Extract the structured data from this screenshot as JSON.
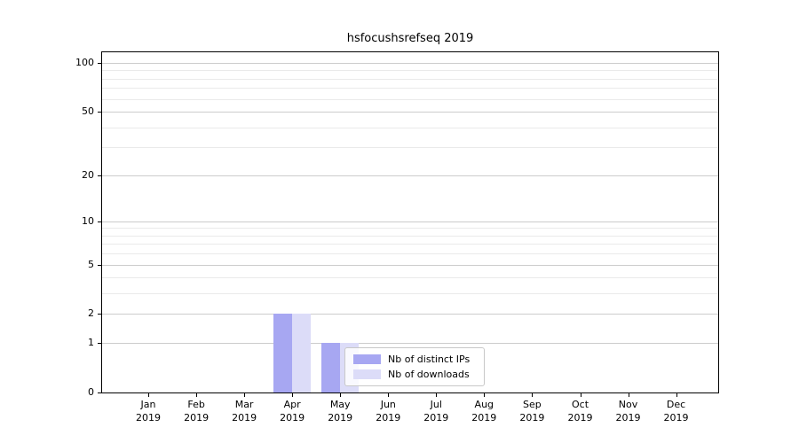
{
  "title": "hsfocushsrefseq 2019",
  "chart_data": {
    "type": "bar",
    "title": "hsfocushsrefseq 2019",
    "categories": [
      "Jan",
      "Feb",
      "Mar",
      "Apr",
      "May",
      "Jun",
      "Jul",
      "Aug",
      "Sep",
      "Oct",
      "Nov",
      "Dec"
    ],
    "category_year": "2019",
    "series": [
      {
        "name": "Nb of distinct IPs",
        "color": "#a7a7f2",
        "values": [
          0,
          0,
          0,
          2,
          1,
          0,
          0,
          0,
          0,
          0,
          0,
          0
        ]
      },
      {
        "name": "Nb of downloads",
        "color": "#dcdcf8",
        "values": [
          0,
          0,
          0,
          2,
          1,
          0,
          0,
          0,
          0,
          0,
          0,
          0
        ]
      }
    ],
    "xlabel": "",
    "ylabel": "",
    "yscale": "log10(1+x)",
    "ylim": [
      0,
      116
    ],
    "ytick_values": [
      0,
      1,
      2,
      5,
      10,
      20,
      50,
      100
    ],
    "minor_gridline_values": [
      3,
      4,
      6,
      7,
      8,
      9,
      30,
      40,
      60,
      70,
      80,
      90
    ],
    "grid": true,
    "legend_position": "lower center, inside plot"
  },
  "colors": {
    "grid_major": "#cccccc",
    "grid_minor": "#eaeaea",
    "spine": "#000000",
    "legend_border": "#c8c8c8",
    "background": "#ffffff"
  }
}
